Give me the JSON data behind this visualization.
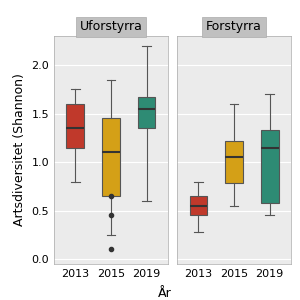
{
  "title": "",
  "panels": [
    "Uforstyrra",
    "Forstyrra"
  ],
  "years": [
    "2013",
    "2015",
    "2019"
  ],
  "colors": [
    "#C0392B",
    "#D4A017",
    "#2E8B74"
  ],
  "xlabel": "År",
  "ylabel": "Artsdiversitet (Shannon)",
  "ylim": [
    -0.05,
    2.3
  ],
  "yticks": [
    0.0,
    0.5,
    1.0,
    1.5,
    2.0
  ],
  "uforstyrra": {
    "2013": {
      "q1": 1.15,
      "median": 1.35,
      "q3": 1.6,
      "whislo": 0.8,
      "whishi": 1.75
    },
    "2015": {
      "q1": 0.65,
      "median": 1.1,
      "q3": 1.45,
      "whislo": 0.25,
      "whishi": 1.85,
      "fliers": [
        0.65,
        0.45,
        0.1
      ]
    },
    "2019": {
      "q1": 1.35,
      "median": 1.55,
      "q3": 1.67,
      "whislo": 0.6,
      "whishi": 2.2,
      "fliers": []
    }
  },
  "forstyrra": {
    "2013": {
      "q1": 0.45,
      "median": 0.55,
      "q3": 0.65,
      "whislo": 0.28,
      "whishi": 0.8
    },
    "2015": {
      "q1": 0.78,
      "median": 1.05,
      "q3": 1.22,
      "whislo": 0.55,
      "whishi": 1.6
    },
    "2019": {
      "q1": 0.58,
      "median": 1.15,
      "q3": 1.33,
      "whislo": 0.45,
      "whishi": 1.7
    }
  },
  "background_color": "#EBEBEB",
  "panel_header_color": "#C0C0C0",
  "grid_color": "#FFFFFF",
  "box_width": 0.5,
  "fontsize_labels": 9,
  "fontsize_ticks": 8,
  "fontsize_panel": 9
}
